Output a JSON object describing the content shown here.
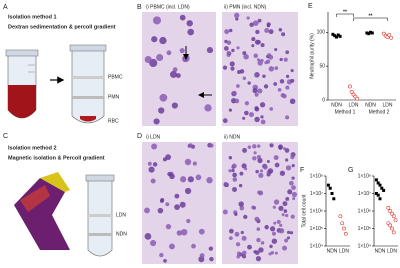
{
  "panels": {
    "A": {
      "letter": "A",
      "title": "Isolation method 1",
      "subtitle": "Dextran sedimentation & percoll gradient",
      "labels": [
        "PBMC",
        "PMN",
        "RBC"
      ]
    },
    "B": {
      "letter": "B",
      "images": [
        "i) PBMC (incl. LDN)",
        "ii) PMN (incl. NDN)"
      ]
    },
    "C": {
      "letter": "C",
      "title": "Isolation method 2",
      "subtitle": "Magnetic isolation & Percoll gradient",
      "labels": [
        "LDN",
        "NDN"
      ]
    },
    "D": {
      "letter": "D",
      "images": [
        "i) LDN",
        "ii) NDN"
      ]
    }
  },
  "chart_data": [
    {
      "type": "strip",
      "title": "E",
      "y_label": "Neutrophil purity (%)",
      "ylim": [
        0,
        130
      ],
      "yticks": [
        0,
        50,
        100
      ],
      "groups": [
        {
          "category": "NDN",
          "marker": "square",
          "color": "#000000",
          "values": [
            97,
            95,
            93,
            96,
            94
          ]
        },
        {
          "category": "LDN",
          "marker": "circle",
          "color": "#e0302a",
          "values": [
            20,
            12,
            8,
            5,
            2
          ]
        },
        {
          "category": "NDN",
          "marker": "square",
          "color": "#000000",
          "values": [
            99,
            98,
            100,
            99
          ]
        },
        {
          "category": "LDN",
          "marker": "circle",
          "color": "#e0302a",
          "values": [
            98,
            95,
            93,
            96,
            92
          ]
        }
      ],
      "group_labels": [
        "Method 1",
        "Method 2"
      ],
      "annotations": [
        "**",
        "**"
      ]
    },
    {
      "type": "strip",
      "title": "F",
      "y_label": "Total cell count",
      "log": true,
      "ylim": [
        10000,
        100000000
      ],
      "yticks": [
        {
          "value": 100000000,
          "label": "1×10⁸"
        },
        {
          "value": 10000000,
          "label": "1×10⁷"
        },
        {
          "value": 1000000,
          "label": "1×10⁶"
        },
        {
          "value": 100000,
          "label": "1×10⁵"
        },
        {
          "value": 10000,
          "label": "1×10⁴"
        }
      ],
      "groups": [
        {
          "category": "NDN",
          "marker": "square",
          "color": "#000000",
          "values": [
            30000000,
            20000000,
            10000000,
            5000000
          ]
        },
        {
          "category": "LDN",
          "marker": "circle",
          "color": "#e0302a",
          "values": [
            500000,
            200000,
            100000,
            50000
          ]
        }
      ]
    },
    {
      "type": "strip",
      "title": "G",
      "log": true,
      "ylim": [
        10000,
        100000000
      ],
      "yticks": [
        {
          "value": 100000000,
          "label": "1×10⁸"
        },
        {
          "value": 10000000,
          "label": "1×10⁷"
        },
        {
          "value": 1000000,
          "label": "1×10⁶"
        },
        {
          "value": 100000,
          "label": "1×10⁵"
        },
        {
          "value": 10000,
          "label": "1×10⁴"
        }
      ],
      "groups": [
        {
          "category": "NDN",
          "marker": "square",
          "color": "#000000",
          "values": [
            60000000,
            40000000,
            30000000,
            20000000,
            15000000,
            10000000,
            8000000,
            5000000
          ]
        },
        {
          "category": "LDN",
          "marker": "circle",
          "color": "#e0302a",
          "values": [
            1500000,
            1000000,
            700000,
            500000,
            300000,
            200000,
            150000,
            100000,
            60000
          ]
        }
      ]
    }
  ]
}
